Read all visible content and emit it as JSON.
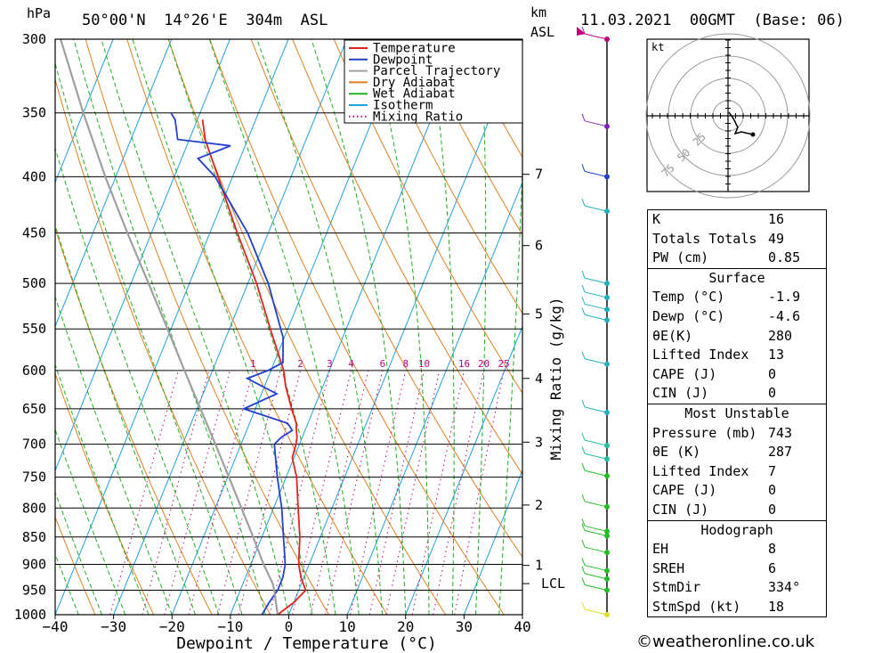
{
  "header": {
    "hpa": "hPa",
    "location": "50°00'N  14°26'E  304m  ASL",
    "km": "km",
    "asl": "ASL",
    "datetime": "11.03.2021  00GMT  (Base: 06)"
  },
  "chart_data": {
    "type": "line",
    "xlabel": "Dewpoint / Temperature (°C)",
    "ylabel": "hPa",
    "xlim": [
      -40,
      40
    ],
    "ylim": [
      1000,
      300
    ],
    "x_ticks": [
      "-40",
      "-30",
      "-20",
      "-10",
      "0",
      "10",
      "20",
      "30",
      "40"
    ],
    "pressure_ticks": [
      "300",
      "350",
      "400",
      "450",
      "500",
      "550",
      "600",
      "650",
      "700",
      "750",
      "800",
      "850",
      "900",
      "950",
      "1000"
    ],
    "km_ticks": [
      {
        "km": "1",
        "p": 902
      },
      {
        "km": "2",
        "p": 795
      },
      {
        "km": "3",
        "p": 697
      },
      {
        "km": "4",
        "p": 610
      },
      {
        "km": "5",
        "p": 533
      },
      {
        "km": "6",
        "p": 462
      },
      {
        "km": "7",
        "p": 398
      }
    ],
    "lcl": {
      "label": "LCL",
      "p": 937
    },
    "mixing_axis_label": "Mixing Ratio (g/kg)",
    "mixing_ratio_labels": [
      "1",
      "2",
      "3",
      "4",
      "6",
      "8",
      "10",
      "16",
      "20",
      "25"
    ],
    "legend": [
      "Temperature",
      "Dewpoint",
      "Parcel Trajectory",
      "Dry Adiabat",
      "Wet Adiabat",
      "Isotherm",
      "Mixing Ratio"
    ],
    "colors": {
      "temperature": "#e82020",
      "dewpoint": "#2040d0",
      "parcel": "#a0a0a0",
      "dry_adiabat": "#e08020",
      "wet_adiabat": "#20b020",
      "isotherm": "#20a0e0",
      "mixing_ratio": "#c00080"
    },
    "series": [
      {
        "name": "Temperature",
        "points": [
          [
            1000,
            -1.9
          ],
          [
            975,
            0
          ],
          [
            950,
            1.2
          ],
          [
            925,
            -0.5
          ],
          [
            900,
            -1.8
          ],
          [
            850,
            -3.5
          ],
          [
            800,
            -5.8
          ],
          [
            750,
            -8.2
          ],
          [
            720,
            -10.3
          ],
          [
            700,
            -10.6
          ],
          [
            690,
            -10.9
          ],
          [
            680,
            -11.5
          ],
          [
            670,
            -12
          ],
          [
            650,
            -13.8
          ],
          [
            620,
            -16.4
          ],
          [
            600,
            -17.8
          ],
          [
            550,
            -23
          ],
          [
            500,
            -28.5
          ],
          [
            450,
            -35.3
          ],
          [
            400,
            -42.5
          ],
          [
            370,
            -47.3
          ],
          [
            355,
            -49.1
          ]
        ]
      },
      {
        "name": "Dewpoint",
        "points": [
          [
            1000,
            -4.6
          ],
          [
            975,
            -4.2
          ],
          [
            950,
            -3.6
          ],
          [
            925,
            -3.6
          ],
          [
            900,
            -4.1
          ],
          [
            850,
            -6.3
          ],
          [
            800,
            -8.6
          ],
          [
            750,
            -11.5
          ],
          [
            700,
            -14.3
          ],
          [
            690,
            -13.6
          ],
          [
            680,
            -12.2
          ],
          [
            670,
            -13.5
          ],
          [
            650,
            -22
          ],
          [
            630,
            -17.4
          ],
          [
            610,
            -23.5
          ],
          [
            600,
            -20.5
          ],
          [
            590,
            -18.5
          ],
          [
            560,
            -20.2
          ],
          [
            500,
            -26.5
          ],
          [
            450,
            -33.5
          ],
          [
            400,
            -43
          ],
          [
            385,
            -47.2
          ],
          [
            375,
            -42.5
          ],
          [
            370,
            -52
          ],
          [
            355,
            -53.8
          ],
          [
            350,
            -55
          ]
        ]
      },
      {
        "name": "Parcel Trajectory",
        "points": [
          [
            1000,
            -1.9
          ],
          [
            950,
            -4.2
          ],
          [
            937,
            -4.9
          ],
          [
            900,
            -7.8
          ],
          [
            850,
            -11.5
          ],
          [
            800,
            -15.5
          ],
          [
            750,
            -19.8
          ],
          [
            700,
            -24.4
          ],
          [
            650,
            -29.4
          ],
          [
            600,
            -34.8
          ],
          [
            550,
            -40.6
          ],
          [
            500,
            -47
          ],
          [
            450,
            -54.1
          ],
          [
            400,
            -61.8
          ],
          [
            350,
            -70
          ],
          [
            300,
            -79
          ]
        ]
      }
    ]
  },
  "hodograph": {
    "unit": "kt",
    "rings": [
      "25",
      "50",
      "75"
    ]
  },
  "indices": [
    {
      "label": "K",
      "value": "16"
    },
    {
      "label": "Totals Totals",
      "value": "49"
    },
    {
      "label": "PW (cm)",
      "value": "0.85"
    }
  ],
  "surface": {
    "title": "Surface",
    "rows": [
      {
        "label": "Temp (°C)",
        "value": "-1.9"
      },
      {
        "label": "Dewp (°C)",
        "value": "-4.6"
      },
      {
        "label": "θE(K)",
        "value": "280"
      },
      {
        "label": "Lifted Index",
        "value": "13"
      },
      {
        "label": "CAPE (J)",
        "value": "0"
      },
      {
        "label": "CIN (J)",
        "value": "0"
      }
    ]
  },
  "most_unstable": {
    "title": "Most Unstable",
    "rows": [
      {
        "label": "Pressure (mb)",
        "value": "743"
      },
      {
        "label": "θE (K)",
        "value": "287"
      },
      {
        "label": "Lifted Index",
        "value": "7"
      },
      {
        "label": "CAPE (J)",
        "value": "0"
      },
      {
        "label": "CIN (J)",
        "value": "0"
      }
    ]
  },
  "hodograph_stats": {
    "title": "Hodograph",
    "rows": [
      {
        "label": "EH",
        "value": "8"
      },
      {
        "label": "SREH",
        "value": "6"
      },
      {
        "label": "StmDir",
        "value": "334°"
      },
      {
        "label": "StmSpd (kt)",
        "value": "18"
      }
    ]
  },
  "credit": "©weatheronline.co.uk"
}
